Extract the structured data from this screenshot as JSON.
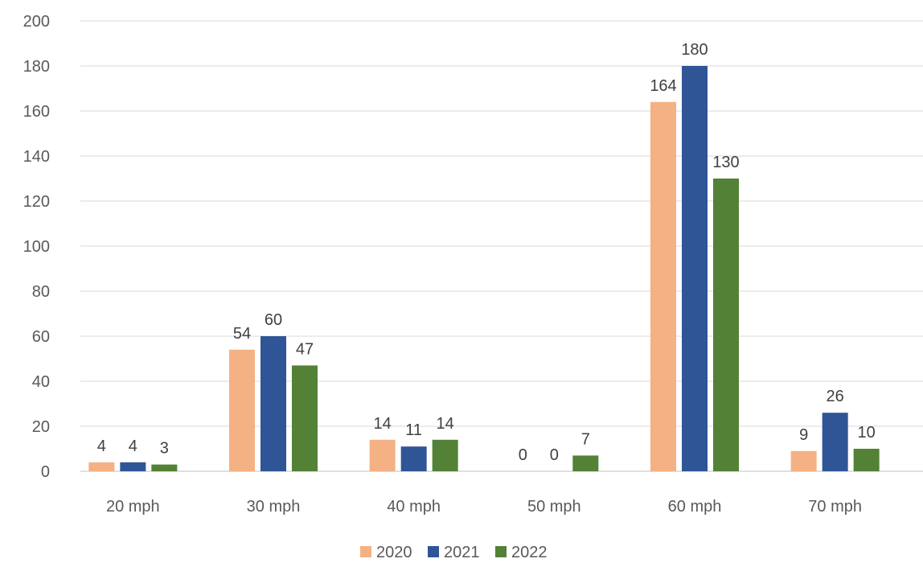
{
  "chart_data": {
    "type": "bar",
    "categories": [
      "20 mph",
      "30 mph",
      "40 mph",
      "50 mph",
      "60 mph",
      "70 mph"
    ],
    "series": [
      {
        "name": "2020",
        "color": "#f4b183",
        "values": [
          4,
          54,
          14,
          0,
          164,
          9
        ]
      },
      {
        "name": "2021",
        "color": "#2f5597",
        "values": [
          4,
          60,
          11,
          0,
          180,
          26
        ]
      },
      {
        "name": "2022",
        "color": "#538135",
        "values": [
          3,
          47,
          14,
          7,
          130,
          10
        ]
      }
    ],
    "ylim": [
      0,
      200
    ],
    "yticks": [
      0,
      20,
      40,
      60,
      80,
      100,
      120,
      140,
      160,
      180,
      200
    ],
    "grid": true,
    "legend": "bottom",
    "data_labels": true
  }
}
